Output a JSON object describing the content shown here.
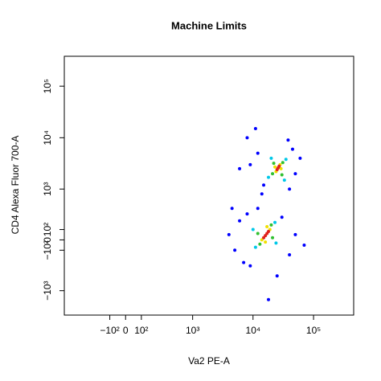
{
  "chart_data": {
    "type": "scatter",
    "title": "Machine Limits",
    "xlabel": "Va2 PE-A",
    "ylabel": "CD4 Alexa Fluor 700-A",
    "xscale": "biexponential",
    "yscale": "biexponential",
    "xlim": [
      -800,
      460000
    ],
    "ylim": [
      -3000,
      380000
    ],
    "xticks": [
      {
        "value": -100,
        "label": "−10²"
      },
      0,
      {
        "value": 100,
        "label": "10²"
      },
      {
        "value": 1000,
        "label": "10³"
      },
      {
        "value": 10000,
        "label": "10⁴"
      },
      {
        "value": 100000,
        "label": "10⁵"
      }
    ],
    "yticks": [
      {
        "value": -1000,
        "label": "−10³"
      },
      {
        "value": -100,
        "label": "−10²"
      },
      0,
      {
        "value": 100,
        "label": "10²"
      },
      {
        "value": 1000,
        "label": "10³"
      },
      {
        "value": 10000,
        "label": "10⁴"
      },
      {
        "value": 100000,
        "label": "10⁵"
      }
    ],
    "x": [
      12000,
      45000,
      15000,
      40000,
      9000,
      60000,
      8000,
      38000,
      14000,
      50000,
      6000,
      11000,
      6000,
      30000,
      5000,
      40000,
      8000,
      7000,
      50000,
      4000,
      25000,
      18000,
      12000,
      70000,
      9000,
      4500,
      18000,
      35000,
      20000,
      33000,
      11000,
      23000,
      10000,
      24000,
      21000,
      31000,
      22000,
      30000,
      13000,
      20000,
      12000,
      21000,
      24000,
      28000,
      23000,
      29000,
      14000,
      19000,
      16000,
      17000,
      26000,
      25000,
      27000,
      16000,
      17000,
      15000,
      18000
    ],
    "y": [
      5000,
      6000,
      1200,
      1000,
      3000,
      4000,
      10000,
      9000,
      800,
      2000,
      2500,
      15000,
      200,
      250,
      -100,
      -150,
      300,
      -250,
      50,
      50,
      -500,
      -1500,
      400,
      -50,
      -300,
      400,
      1700,
      3800,
      4000,
      1500,
      -70,
      180,
      100,
      -30,
      2000,
      3300,
      3200,
      1900,
      -40,
      150,
      60,
      20,
      2200,
      3000,
      2700,
      2500,
      0,
      100,
      -20,
      130,
      2600,
      2400,
      2800,
      40,
      60,
      20,
      80
    ],
    "colors": [
      "#0000ff",
      "#0000ff",
      "#0000ff",
      "#0000ff",
      "#0000ff",
      "#0000ff",
      "#0000ff",
      "#0000ff",
      "#0000ff",
      "#0000ff",
      "#0000ff",
      "#0000ff",
      "#0000ff",
      "#0000ff",
      "#0000ff",
      "#0000ff",
      "#0000ff",
      "#0000ff",
      "#0000ff",
      "#0000ff",
      "#0000ff",
      "#0000ff",
      "#0000ff",
      "#0000ff",
      "#0000ff",
      "#0000ff",
      "#00c8e8",
      "#00c8e8",
      "#00c8e8",
      "#00c8e8",
      "#00c8e8",
      "#00c8e8",
      "#00c8e8",
      "#00c8e8",
      "#30c030",
      "#30c030",
      "#30c030",
      "#30c030",
      "#30c030",
      "#30c030",
      "#30c030",
      "#30c030",
      "#f0e000",
      "#f0e000",
      "#f0e000",
      "#f0e000",
      "#f0e000",
      "#f0e000",
      "#f0e000",
      "#f0e000",
      "#e0201c",
      "#e0201c",
      "#e0201c",
      "#e0201c",
      "#e0201c",
      "#e0201c",
      "#e0201c"
    ]
  }
}
